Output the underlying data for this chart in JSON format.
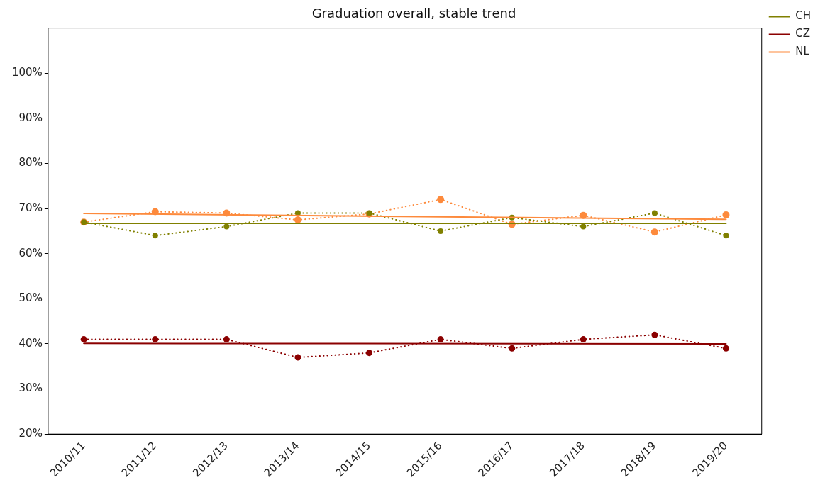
{
  "chart_data": {
    "type": "line",
    "title": "Graduation overall, stable trend",
    "categories": [
      "2010/11",
      "2011/12",
      "2012/13",
      "2013/14",
      "2014/15",
      "2015/16",
      "2016/17",
      "2017/18",
      "2018/19",
      "2019/20"
    ],
    "ylim": [
      20,
      110
    ],
    "yticks": [
      {
        "value": 20,
        "label": "20%"
      },
      {
        "value": 30,
        "label": "30%"
      },
      {
        "value": 40,
        "label": "40%"
      },
      {
        "value": 50,
        "label": "50%"
      },
      {
        "value": 60,
        "label": "60%"
      },
      {
        "value": 70,
        "label": "70%"
      },
      {
        "value": 80,
        "label": "80%"
      },
      {
        "value": 90,
        "label": "90%"
      },
      {
        "value": 100,
        "label": "100%"
      }
    ],
    "grid": false,
    "legend": "top right",
    "series": [
      {
        "name": "CH",
        "color": "#808000",
        "line_style": "solid",
        "marker": "none",
        "x": [
          "2010/11",
          "2019/20"
        ],
        "values": [
          66.7,
          66.7
        ]
      },
      {
        "name": "CZ",
        "color": "#8b0000",
        "line_style": "solid",
        "marker": "none",
        "x": [
          "2010/11",
          "2019/20"
        ],
        "values": [
          40.1,
          40.0
        ]
      },
      {
        "name": "NL",
        "color": "#fd8a3c",
        "line_style": "solid",
        "marker": "none",
        "x": [
          "2010/11",
          "2019/20"
        ],
        "values": [
          68.9,
          67.6
        ]
      },
      {
        "color": "#808000",
        "line_style": "dotted",
        "marker": "circle",
        "values": [
          67,
          64,
          66,
          69,
          69,
          65,
          68,
          66,
          69,
          64
        ]
      },
      {
        "color": "#8b0000",
        "line_style": "dotted",
        "marker": "circle",
        "values": [
          41,
          41,
          41,
          37,
          38,
          41,
          39,
          41,
          42,
          39
        ]
      },
      {
        "color": "#fd8a3c",
        "line_style": "dotted",
        "marker": "circle",
        "values": [
          67,
          69.3,
          69,
          67.5,
          68.8,
          72,
          66.5,
          68.5,
          64.8,
          68.6
        ]
      }
    ]
  }
}
